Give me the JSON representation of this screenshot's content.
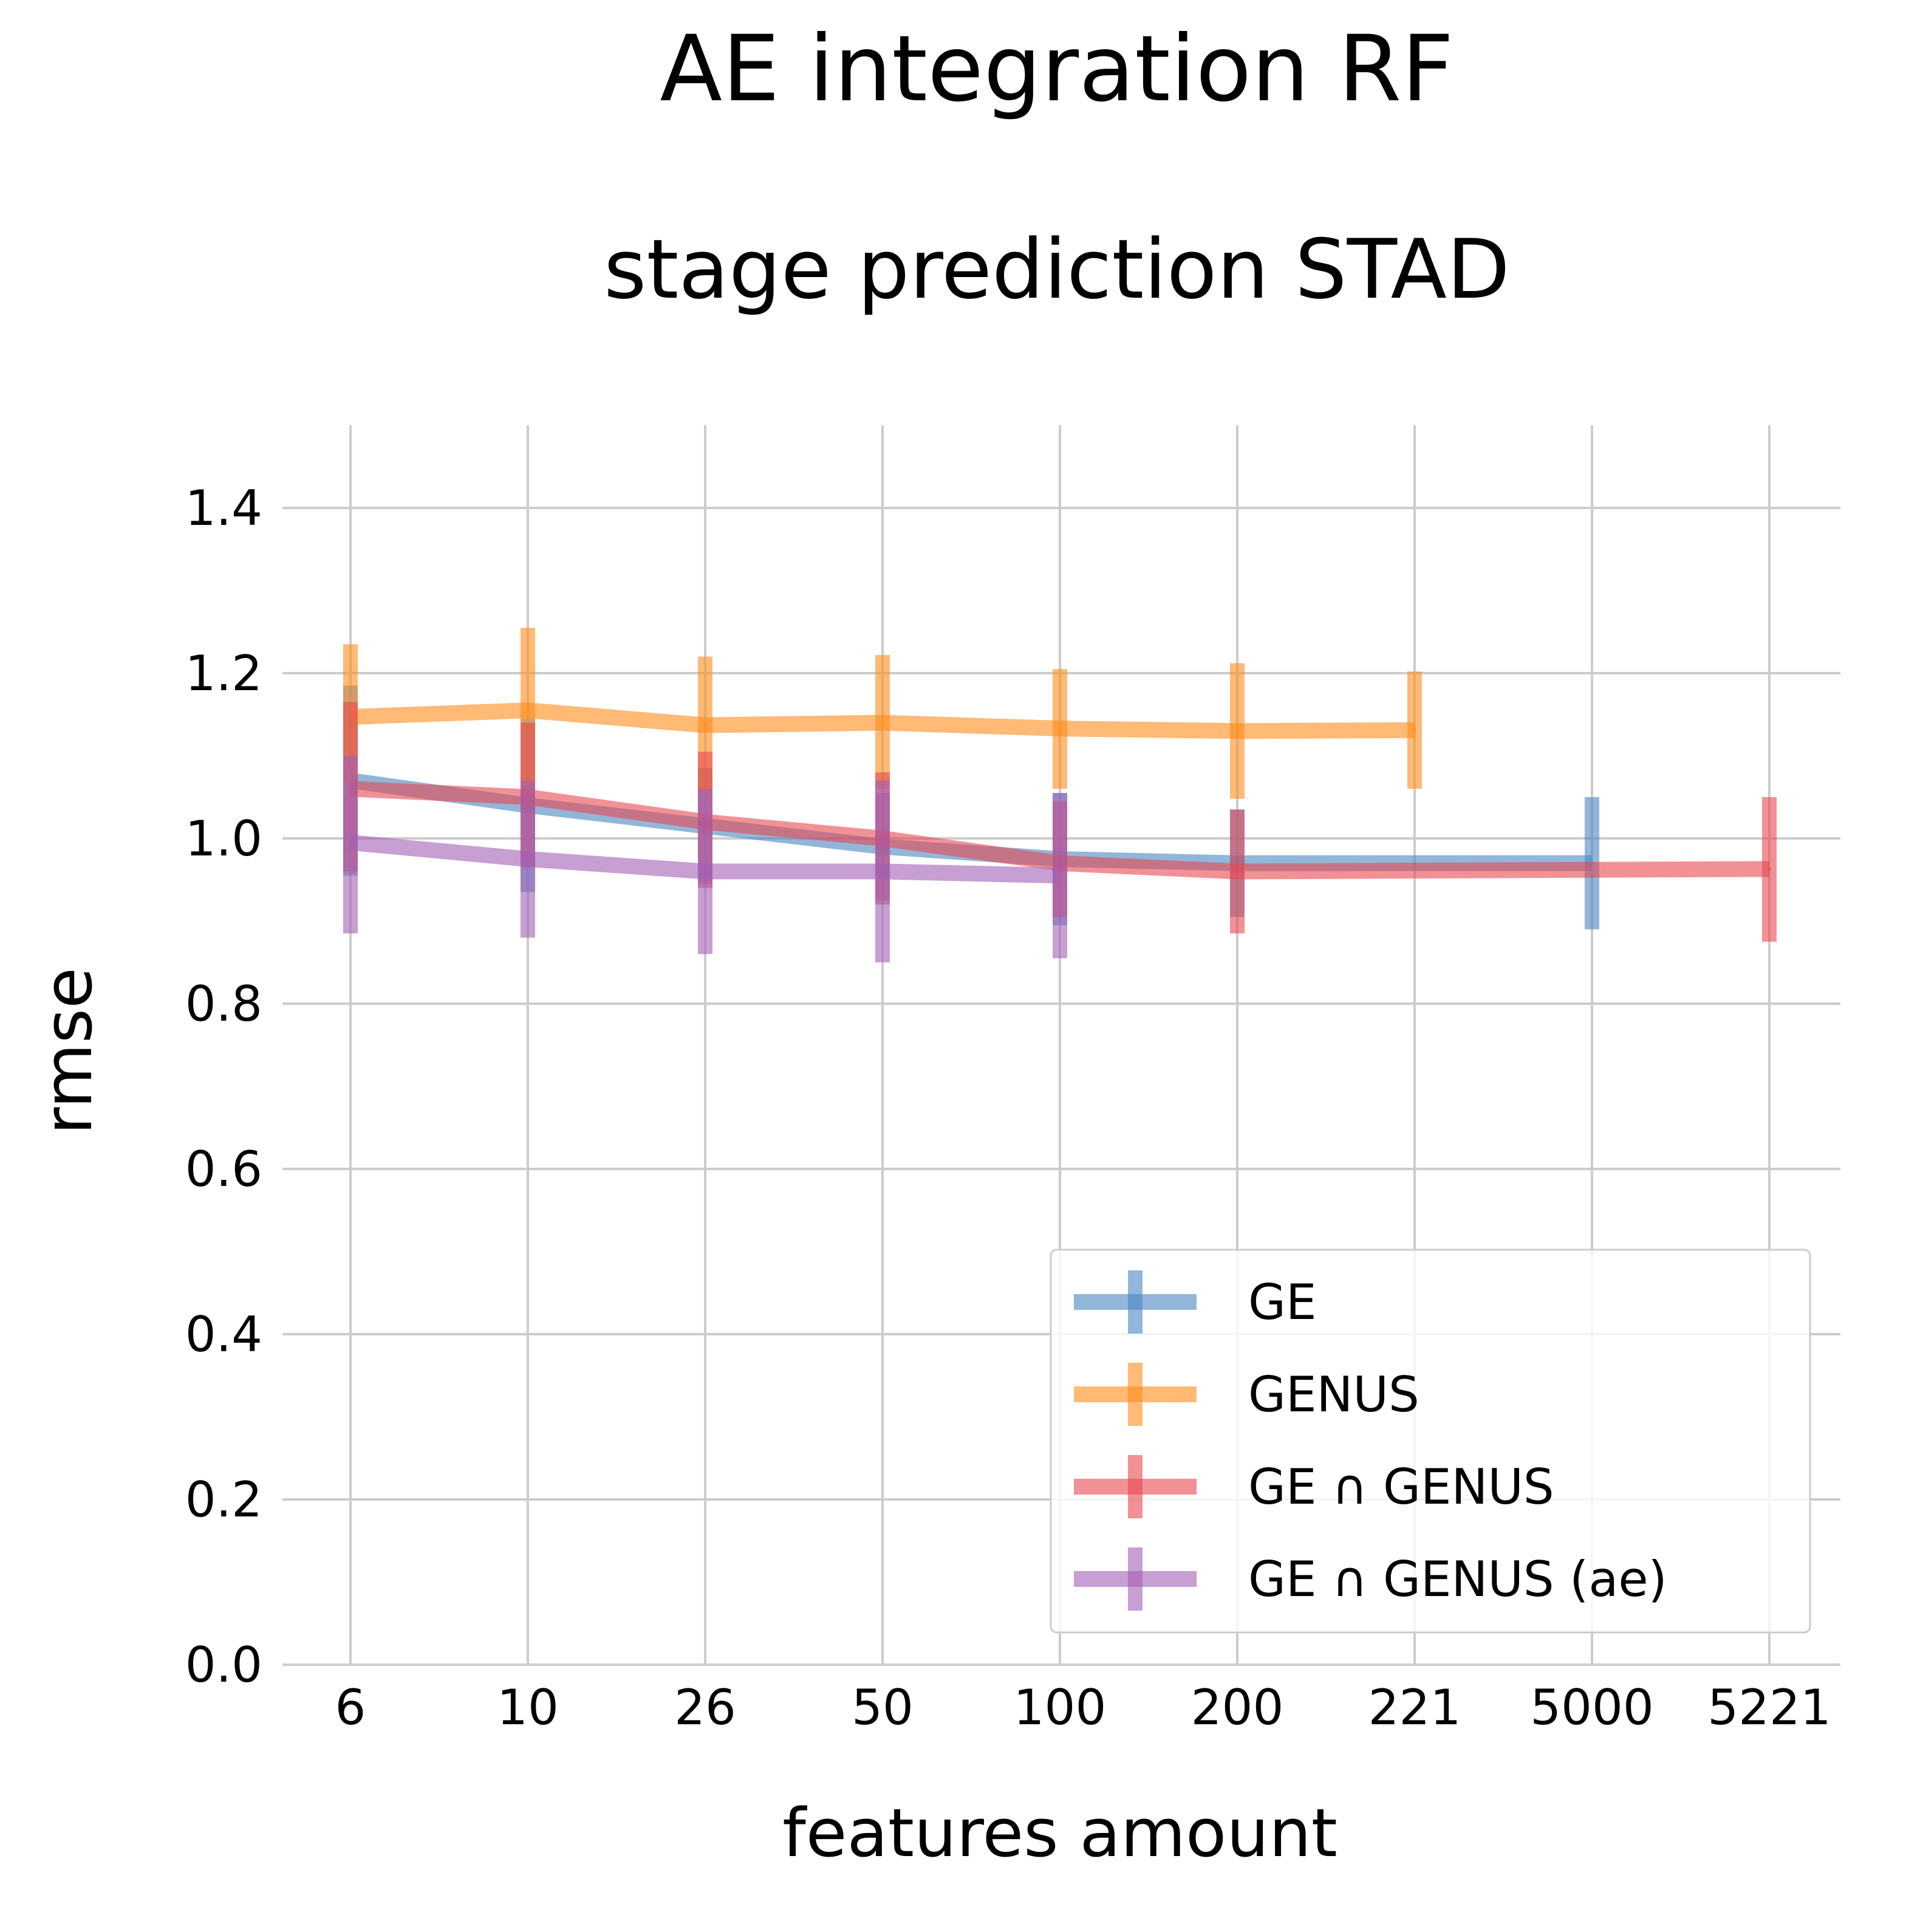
{
  "chart_data": {
    "type": "line",
    "title": "AE integration RF",
    "subtitle": "stage prediction STAD",
    "xlabel": "features amount",
    "ylabel": "rmse",
    "categories": [
      "6",
      "10",
      "26",
      "50",
      "100",
      "200",
      "221",
      "5000",
      "5221"
    ],
    "ylim": [
      0,
      1.5
    ],
    "yticks": [
      "0.0",
      "0.2",
      "0.4",
      "0.6",
      "0.8",
      "1.0",
      "1.2",
      "1.4"
    ],
    "grid": true,
    "legend_position": "lower-right",
    "series": [
      {
        "name": "GE",
        "color": "#4a86c0",
        "points": [
          {
            "x": "6",
            "y": 1.07,
            "lo": 0.955,
            "hi": 1.185
          },
          {
            "x": "10",
            "y": 1.04,
            "lo": 0.935,
            "hi": 1.145
          },
          {
            "x": "26",
            "y": 1.015,
            "lo": 0.945,
            "hi": 1.085
          },
          {
            "x": "50",
            "y": 0.99,
            "lo": 0.925,
            "hi": 1.055
          },
          {
            "x": "100",
            "y": 0.975,
            "lo": 0.895,
            "hi": 1.055
          },
          {
            "x": "200",
            "y": 0.97,
            "lo": 0.905,
            "hi": 1.035
          },
          {
            "x": "5000",
            "y": 0.97,
            "lo": 0.89,
            "hi": 1.05
          }
        ]
      },
      {
        "name": "GENUS",
        "color": "#ff8c1a",
        "points": [
          {
            "x": "6",
            "y": 1.147,
            "lo": 1.065,
            "hi": 1.235
          },
          {
            "x": "10",
            "y": 1.155,
            "lo": 1.055,
            "hi": 1.255
          },
          {
            "x": "26",
            "y": 1.137,
            "lo": 1.055,
            "hi": 1.22
          },
          {
            "x": "50",
            "y": 1.14,
            "lo": 1.06,
            "hi": 1.222
          },
          {
            "x": "100",
            "y": 1.133,
            "lo": 1.06,
            "hi": 1.205
          },
          {
            "x": "200",
            "y": 1.13,
            "lo": 1.048,
            "hi": 1.212
          },
          {
            "x": "221",
            "y": 1.131,
            "lo": 1.06,
            "hi": 1.202
          }
        ]
      },
      {
        "name": "GE ∩ GENUS",
        "color": "#e84750",
        "points": [
          {
            "x": "6",
            "y": 1.06,
            "lo": 0.96,
            "hi": 1.165
          },
          {
            "x": "10",
            "y": 1.05,
            "lo": 0.965,
            "hi": 1.14
          },
          {
            "x": "26",
            "y": 1.02,
            "lo": 0.94,
            "hi": 1.105
          },
          {
            "x": "50",
            "y": 1.0,
            "lo": 0.92,
            "hi": 1.08
          },
          {
            "x": "100",
            "y": 0.97,
            "lo": 0.905,
            "hi": 1.045
          },
          {
            "x": "200",
            "y": 0.96,
            "lo": 0.885,
            "hi": 1.035
          },
          {
            "x": "5221",
            "y": 0.963,
            "lo": 0.875,
            "hi": 1.05
          }
        ]
      },
      {
        "name": "GE ∩ GENUS (ae)",
        "color": "#a25fb5",
        "points": [
          {
            "x": "6",
            "y": 0.995,
            "lo": 0.885,
            "hi": 1.1
          },
          {
            "x": "10",
            "y": 0.975,
            "lo": 0.88,
            "hi": 1.07
          },
          {
            "x": "26",
            "y": 0.96,
            "lo": 0.86,
            "hi": 1.06
          },
          {
            "x": "50",
            "y": 0.96,
            "lo": 0.85,
            "hi": 1.07
          },
          {
            "x": "100",
            "y": 0.955,
            "lo": 0.855,
            "hi": 1.055
          }
        ]
      }
    ]
  }
}
